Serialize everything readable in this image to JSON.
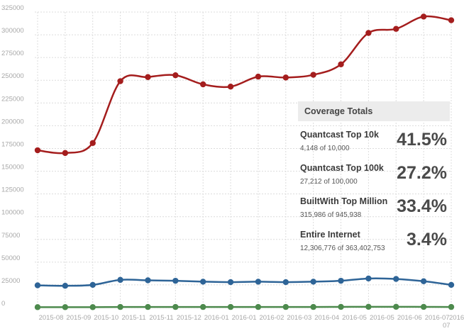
{
  "chart_data": {
    "type": "line",
    "categories": [
      "2015-08",
      "2015-09",
      "2015-10",
      "2015-11",
      "2015-11",
      "2015-12",
      "2016-01",
      "2016-01",
      "2016-02",
      "2016-03",
      "2016-04",
      "2016-05",
      "2016-05",
      "2016-06",
      "2016-07",
      "2016-07"
    ],
    "y_ticks": [
      "0",
      "25000",
      "50000",
      "75000",
      "100000",
      "125000",
      "150000",
      "175000",
      "200000",
      "225000",
      "250000",
      "275000",
      "300000",
      "325000"
    ],
    "ylim": [
      0,
      325000
    ],
    "grid": true,
    "series": [
      {
        "color": "#a41d1d",
        "values": [
          173000,
          170000,
          181000,
          249000,
          253500,
          255500,
          245500,
          243000,
          254000,
          253000,
          256000,
          267500,
          302000,
          306500,
          320000,
          316000
        ]
      },
      {
        "color": "#2e6497",
        "values": [
          24500,
          24000,
          25000,
          30500,
          30000,
          29500,
          28500,
          28000,
          28500,
          28000,
          28500,
          29500,
          32000,
          31500,
          29000,
          25000
        ]
      },
      {
        "color": "#4d8a4d",
        "values": [
          500,
          500,
          500,
          700,
          700,
          700,
          700,
          700,
          700,
          700,
          700,
          800,
          900,
          900,
          800,
          700
        ]
      }
    ],
    "title": "",
    "xlabel": "",
    "ylabel": ""
  },
  "panel": {
    "title": "Coverage Totals",
    "items": [
      {
        "name": "Quantcast Top 10k",
        "detail": "4,148 of 10,000",
        "pct": "41.5%"
      },
      {
        "name": "Quantcast Top 100k",
        "detail": "27,212 of 100,000",
        "pct": "27.2%"
      },
      {
        "name": "BuiltWith Top Million",
        "detail": "315,986 of 945,938",
        "pct": "33.4%"
      },
      {
        "name": "Entire Internet",
        "detail": "12,306,776 of 363,402,753",
        "pct": "3.4%"
      }
    ]
  }
}
